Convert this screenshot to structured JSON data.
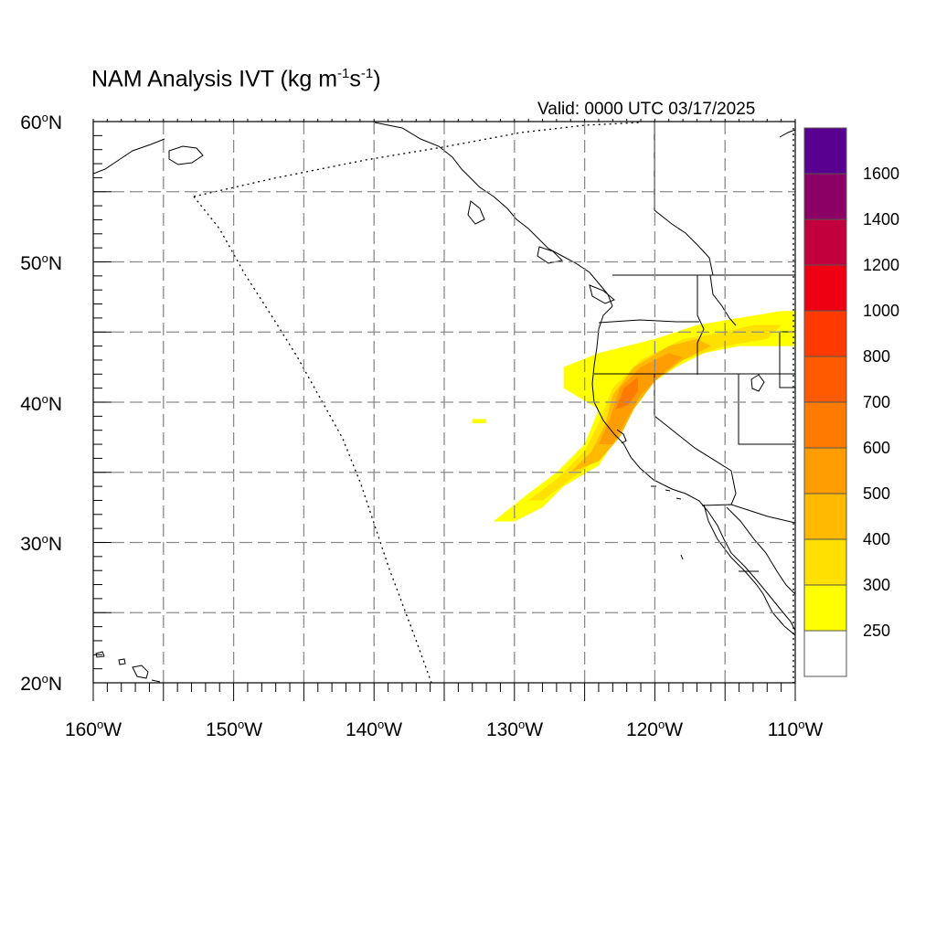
{
  "title": {
    "text": "NAM Analysis IVT (kg m",
    "exp1": "-1",
    "mid": "s",
    "exp2": "-1",
    "close": ")"
  },
  "valid": "Valid: 0000 UTC 03/17/2025",
  "axes": {
    "lat_labels": [
      {
        "deg": "60",
        "hemi": "N"
      },
      {
        "deg": "50",
        "hemi": "N"
      },
      {
        "deg": "40",
        "hemi": "N"
      },
      {
        "deg": "30",
        "hemi": "N"
      },
      {
        "deg": "20",
        "hemi": "N"
      }
    ],
    "lon_labels": [
      {
        "deg": "160",
        "hemi": "W"
      },
      {
        "deg": "150",
        "hemi": "W"
      },
      {
        "deg": "140",
        "hemi": "W"
      },
      {
        "deg": "130",
        "hemi": "W"
      },
      {
        "deg": "120",
        "hemi": "W"
      },
      {
        "deg": "110",
        "hemi": "W"
      }
    ],
    "lon_range": [
      -160,
      -110
    ],
    "lat_range": [
      20,
      60
    ],
    "grid_spacing_deg": 5,
    "grid": true
  },
  "colorbar": {
    "labels": [
      "1600",
      "1400",
      "1200",
      "1000",
      "800",
      "700",
      "600",
      "500",
      "400",
      "300",
      "250"
    ],
    "colors": [
      "#5a0090",
      "#8c0066",
      "#c2003d",
      "#ee0012",
      "#ff3a00",
      "#ff5a00",
      "#ff7a00",
      "#ff9c00",
      "#ffba00",
      "#ffe000",
      "#ffff00",
      "#ffffff"
    ]
  },
  "chart_data": {
    "type": "heatmap",
    "variable": "IVT",
    "units": "kg m-1 s-1",
    "levels": [
      250,
      300,
      400,
      500,
      600,
      700,
      800,
      1000,
      1200,
      1400,
      1600
    ],
    "features": [
      {
        "level": 250,
        "polygon_lonlat": [
          [
            -131.5,
            31.5
          ],
          [
            -129,
            33.5
          ],
          [
            -127,
            35
          ],
          [
            -125,
            37
          ],
          [
            -124,
            39.5
          ],
          [
            -126.5,
            41
          ],
          [
            -126.5,
            42.5
          ],
          [
            -124,
            43.5
          ],
          [
            -120,
            44.5
          ],
          [
            -117,
            45.5
          ],
          [
            -114,
            46
          ],
          [
            -111,
            46.5
          ],
          [
            -110,
            46.5
          ],
          [
            -110,
            44
          ],
          [
            -114,
            44
          ],
          [
            -116.5,
            43.5
          ],
          [
            -118.5,
            42.5
          ],
          [
            -120,
            41.5
          ],
          [
            -121,
            40.5
          ],
          [
            -122,
            39.5
          ],
          [
            -123,
            37
          ],
          [
            -124,
            35.5
          ],
          [
            -126.5,
            34
          ],
          [
            -128,
            32.5
          ],
          [
            -130,
            31.5
          ]
        ]
      },
      {
        "level": 300,
        "polygon_lonlat": [
          [
            -129,
            33
          ],
          [
            -127,
            34.5
          ],
          [
            -125,
            36.5
          ],
          [
            -124,
            38.5
          ],
          [
            -123,
            41
          ],
          [
            -121,
            43
          ],
          [
            -118,
            44.5
          ],
          [
            -115,
            45
          ],
          [
            -113,
            45.5
          ],
          [
            -111,
            45.5
          ],
          [
            -112,
            44.5
          ],
          [
            -115,
            44
          ],
          [
            -118,
            43
          ],
          [
            -120,
            41.8
          ],
          [
            -121.5,
            40
          ],
          [
            -122.5,
            38
          ],
          [
            -124,
            36
          ],
          [
            -126,
            34.5
          ],
          [
            -128,
            33
          ]
        ]
      },
      {
        "level": 400,
        "polygon_lonlat": [
          [
            -126,
            35
          ],
          [
            -124.5,
            36.5
          ],
          [
            -123.5,
            38.5
          ],
          [
            -123,
            40.5
          ],
          [
            -121.5,
            42.5
          ],
          [
            -119,
            44
          ],
          [
            -117,
            44.5
          ],
          [
            -116,
            44
          ],
          [
            -118,
            43
          ],
          [
            -120,
            41.5
          ],
          [
            -121.5,
            39.5
          ],
          [
            -122.5,
            37.5
          ],
          [
            -124,
            35.8
          ]
        ]
      },
      {
        "level": 500,
        "polygon_lonlat": [
          [
            -124,
            37
          ],
          [
            -123.2,
            38.8
          ],
          [
            -122.5,
            41
          ],
          [
            -121,
            42.5
          ],
          [
            -119,
            43.5
          ],
          [
            -118,
            43.2
          ],
          [
            -119.5,
            42
          ],
          [
            -121,
            40.5
          ],
          [
            -122,
            38.8
          ],
          [
            -123,
            37
          ]
        ]
      },
      {
        "level": 600,
        "polygon_lonlat": [
          [
            -122.8,
            39.5
          ],
          [
            -122.2,
            41
          ],
          [
            -121.2,
            41.8
          ],
          [
            -121.2,
            40.8
          ],
          [
            -121.9,
            39.8
          ]
        ]
      },
      {
        "level": 250,
        "polygon_lonlat": [
          [
            -133,
            38.5
          ],
          [
            -132,
            38.5
          ],
          [
            -132,
            38.8
          ],
          [
            -133,
            38.8
          ]
        ]
      }
    ]
  }
}
